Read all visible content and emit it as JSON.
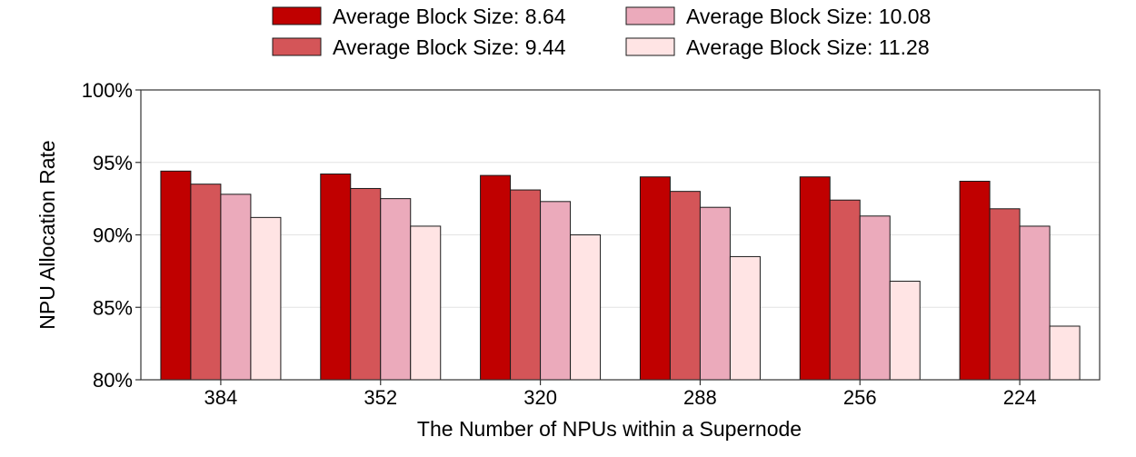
{
  "chart_data": {
    "type": "bar",
    "title": "",
    "xlabel": "The Number of NPUs within a Supernode",
    "ylabel": "NPU Allocation Rate",
    "categories": [
      "384",
      "352",
      "320",
      "288",
      "256",
      "224"
    ],
    "ylim": [
      80,
      100
    ],
    "yticks": [
      "80%",
      "85%",
      "90%",
      "95%",
      "100%"
    ],
    "grid": true,
    "legend_position": "top",
    "series": [
      {
        "name": "Average Block Size: 8.64",
        "color": "#c00000",
        "values": [
          94.4,
          94.2,
          94.1,
          94.0,
          94.0,
          93.7
        ]
      },
      {
        "name": "Average Block Size: 9.44",
        "color": "#d45558",
        "values": [
          93.5,
          93.2,
          93.1,
          93.0,
          92.4,
          91.8
        ]
      },
      {
        "name": "Average Block Size: 10.08",
        "color": "#ebaabb",
        "values": [
          92.8,
          92.5,
          92.3,
          91.9,
          91.3,
          90.6
        ]
      },
      {
        "name": "Average Block Size: 11.28",
        "color": "#ffe4e4",
        "values": [
          91.2,
          90.6,
          90.0,
          88.5,
          86.8,
          83.7
        ]
      }
    ]
  }
}
